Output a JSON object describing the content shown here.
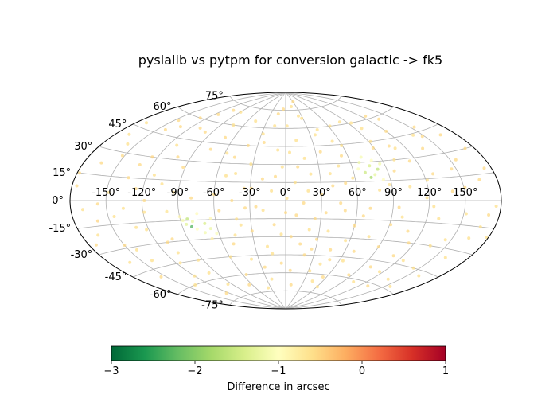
{
  "chart_data": {
    "type": "scatter",
    "projection": "aitoff",
    "title": "pyslalib vs pytpm for conversion galactic -> fk5",
    "grid": true,
    "longitude_ticks": [
      "-150°",
      "-120°",
      "-90°",
      "-60°",
      "-30°",
      "0°",
      "30°",
      "60°",
      "90°",
      "120°",
      "150°"
    ],
    "longitude_tick_values": [
      -150,
      -120,
      -90,
      -60,
      -30,
      0,
      30,
      60,
      90,
      120,
      150
    ],
    "latitude_ticks": [
      "-75°",
      "-60°",
      "-45°",
      "-30°",
      "-15°",
      "0°",
      "15°",
      "30°",
      "45°",
      "60°",
      "75°"
    ],
    "latitude_tick_values": [
      -75,
      -60,
      -45,
      -30,
      -15,
      0,
      15,
      30,
      45,
      60,
      75
    ],
    "colorbar": {
      "label": "Difference in arcsec",
      "range": [
        -3,
        1
      ],
      "ticks": [
        -3,
        -2,
        -1,
        0,
        1
      ],
      "tick_labels": [
        "−3",
        "−2",
        "−1",
        "0",
        "1"
      ],
      "colormap": "RdYlGn_r",
      "color_stops": [
        "#006837",
        "#1a9850",
        "#66bd63",
        "#a6d96a",
        "#d9ef8b",
        "#ffffbf",
        "#fee08b",
        "#fdae61",
        "#f46d43",
        "#d73027",
        "#a50026"
      ]
    },
    "series": [
      {
        "points": [
          [
            -176,
            8,
            -0.55
          ],
          [
            -170,
            -5,
            -0.6
          ],
          [
            -165,
            22,
            -0.55
          ],
          [
            -160,
            -12,
            -0.5
          ],
          [
            -158,
            35,
            -0.6
          ],
          [
            -150,
            -28,
            -0.55
          ],
          [
            -148,
            5,
            -0.6
          ],
          [
            -142,
            48,
            -0.55
          ],
          [
            -140,
            -40,
            -0.6
          ],
          [
            -135,
            15,
            -0.55
          ],
          [
            -130,
            -18,
            -0.6
          ],
          [
            -128,
            60,
            -0.55
          ],
          [
            -125,
            30,
            -0.5
          ],
          [
            -120,
            -55,
            -0.6
          ],
          [
            -118,
            0,
            -0.55
          ],
          [
            -112,
            40,
            -0.6
          ],
          [
            -110,
            -30,
            -0.55
          ],
          [
            -105,
            12,
            -0.6
          ],
          [
            -100,
            -8,
            -0.65
          ],
          [
            -98,
            52,
            -0.55
          ],
          [
            -95,
            -45,
            -0.6
          ],
          [
            -92,
            25,
            -0.55
          ],
          [
            -90,
            -12,
            -0.9
          ],
          [
            -88,
            -15,
            -1.1
          ],
          [
            -86,
            -18,
            -1.3
          ],
          [
            -84,
            -14,
            -1.6
          ],
          [
            -82,
            -20,
            -2.3
          ],
          [
            -80,
            -16,
            -1.2
          ],
          [
            -78,
            -22,
            -1.0
          ],
          [
            -75,
            -10,
            -0.95
          ],
          [
            -72,
            -25,
            -1.15
          ],
          [
            -70,
            -18,
            -1.4
          ],
          [
            -68,
            -30,
            -0.8
          ],
          [
            -66,
            -22,
            -1.2
          ],
          [
            -64,
            -14,
            -0.9
          ],
          [
            -62,
            -26,
            -1.05
          ],
          [
            -60,
            5,
            -0.55
          ],
          [
            -58,
            38,
            -0.6
          ],
          [
            -55,
            -60,
            -0.55
          ],
          [
            -52,
            20,
            -0.6
          ],
          [
            -50,
            -35,
            -0.55
          ],
          [
            -48,
            65,
            -0.6
          ],
          [
            -45,
            0,
            -0.55
          ],
          [
            -42,
            -15,
            -0.6
          ],
          [
            -40,
            45,
            -0.55
          ],
          [
            -38,
            -48,
            -0.6
          ],
          [
            -35,
            10,
            -0.55
          ],
          [
            -32,
            30,
            -0.6
          ],
          [
            -30,
            -25,
            -0.55
          ],
          [
            -28,
            55,
            -0.6
          ],
          [
            -25,
            -5,
            -0.55
          ],
          [
            -22,
            -65,
            -0.6
          ],
          [
            -20,
            18,
            -0.55
          ],
          [
            -18,
            -38,
            -0.6
          ],
          [
            -15,
            72,
            -0.55
          ],
          [
            -12,
            8,
            -0.6
          ],
          [
            -10,
            -20,
            -0.55
          ],
          [
            -8,
            42,
            -0.6
          ],
          [
            -5,
            -52,
            -0.55
          ],
          [
            -3,
            28,
            -0.6
          ],
          [
            0,
            -10,
            -0.55
          ],
          [
            2,
            62,
            -0.6
          ],
          [
            5,
            -30,
            -0.55
          ],
          [
            8,
            15,
            -0.6
          ],
          [
            10,
            -70,
            -0.55
          ],
          [
            12,
            50,
            -0.6
          ],
          [
            15,
            -2,
            -0.55
          ],
          [
            18,
            35,
            -0.6
          ],
          [
            20,
            -45,
            -0.55
          ],
          [
            22,
            22,
            -0.6
          ],
          [
            25,
            -15,
            -0.55
          ],
          [
            28,
            68,
            -0.6
          ],
          [
            30,
            5,
            -0.55
          ],
          [
            32,
            -58,
            -0.6
          ],
          [
            35,
            40,
            -0.55
          ],
          [
            38,
            -25,
            -0.6
          ],
          [
            40,
            12,
            -0.55
          ],
          [
            42,
            58,
            -0.6
          ],
          [
            45,
            -40,
            -0.55
          ],
          [
            48,
            28,
            -0.6
          ],
          [
            50,
            -8,
            -0.55
          ],
          [
            52,
            48,
            -0.6
          ],
          [
            55,
            -62,
            -0.55
          ],
          [
            58,
            18,
            -0.6
          ],
          [
            60,
            -20,
            -0.55
          ],
          [
            62,
            60,
            -0.6
          ],
          [
            65,
            25,
            -1.05
          ],
          [
            68,
            30,
            -1.2
          ],
          [
            70,
            22,
            -1.5
          ],
          [
            72,
            34,
            -1.1
          ],
          [
            74,
            18,
            -1.8
          ],
          [
            76,
            27,
            -1.4
          ],
          [
            78,
            20,
            -1.25
          ],
          [
            80,
            31,
            -1.0
          ],
          [
            82,
            24,
            -1.6
          ],
          [
            84,
            16,
            -0.95
          ],
          [
            86,
            28,
            -1.15
          ],
          [
            88,
            12,
            -0.6
          ],
          [
            90,
            -35,
            -0.55
          ],
          [
            92,
            45,
            -0.6
          ],
          [
            95,
            -5,
            -0.55
          ],
          [
            98,
            55,
            -0.6
          ],
          [
            100,
            -50,
            -0.55
          ],
          [
            105,
            10,
            -0.6
          ],
          [
            108,
            -22,
            -0.55
          ],
          [
            110,
            38,
            -0.6
          ],
          [
            115,
            -30,
            -0.55
          ],
          [
            118,
            2,
            -0.6
          ],
          [
            120,
            50,
            -0.55
          ],
          [
            125,
            -42,
            -0.6
          ],
          [
            128,
            18,
            -0.55
          ],
          [
            130,
            -12,
            -0.6
          ],
          [
            135,
            35,
            -0.55
          ],
          [
            138,
            -55,
            -0.6
          ],
          [
            140,
            6,
            -0.55
          ],
          [
            145,
            -25,
            -0.6
          ],
          [
            148,
            42,
            -0.55
          ],
          [
            152,
            -8,
            -0.6
          ],
          [
            155,
            25,
            -0.55
          ],
          [
            160,
            -35,
            -0.6
          ],
          [
            165,
            12,
            -0.55
          ],
          [
            168,
            -15,
            -0.6
          ],
          [
            172,
            30,
            -0.55
          ],
          [
            176,
            -3,
            -0.6
          ],
          [
            -174,
            -25,
            -0.55
          ],
          [
            -168,
            40,
            -0.6
          ],
          [
            -155,
            -50,
            -0.55
          ],
          [
            -145,
            -10,
            -0.6
          ],
          [
            -132,
            52,
            -0.55
          ],
          [
            -122,
            -20,
            -0.6
          ],
          [
            -115,
            65,
            -0.55
          ],
          [
            -108,
            -38,
            -0.6
          ],
          [
            -102,
            32,
            -0.55
          ],
          [
            -96,
            -65,
            -0.6
          ],
          [
            -76,
            40,
            -0.55
          ],
          [
            -74,
            60,
            -0.6
          ],
          [
            -56,
            -8,
            -0.55
          ],
          [
            -36,
            -72,
            -0.6
          ],
          [
            -24,
            48,
            -0.55
          ],
          [
            -14,
            -44,
            -0.6
          ],
          [
            -6,
            76,
            -0.55
          ],
          [
            4,
            40,
            -0.6
          ],
          [
            14,
            -36,
            -0.55
          ],
          [
            24,
            70,
            -0.6
          ],
          [
            34,
            -10,
            -0.55
          ],
          [
            44,
            -66,
            -0.6
          ],
          [
            54,
            36,
            -0.55
          ],
          [
            64,
            -48,
            -0.6
          ],
          [
            96,
            22,
            -0.55
          ],
          [
            104,
            -62,
            -0.6
          ],
          [
            114,
            28,
            -0.55
          ],
          [
            124,
            -4,
            -0.6
          ],
          [
            134,
            58,
            -0.55
          ],
          [
            144,
            -45,
            -0.6
          ],
          [
            154,
            48,
            -0.55
          ],
          [
            164,
            -22,
            -0.6
          ],
          [
            174,
            18,
            -0.55
          ],
          [
            -162,
            -38,
            -0.6
          ],
          [
            -152,
            28,
            -0.55
          ],
          [
            -138,
            -60,
            -0.6
          ],
          [
            -126,
            8,
            -0.55
          ],
          [
            -116,
            -45,
            -0.6
          ],
          [
            -106,
            70,
            -0.55
          ],
          [
            -94,
            6,
            -0.6
          ],
          [
            -70,
            50,
            -0.55
          ],
          [
            -46,
            -28,
            -0.6
          ],
          [
            -26,
            -55,
            -0.55
          ],
          [
            -16,
            62,
            -0.6
          ],
          [
            6,
            -58,
            -0.55
          ],
          [
            16,
            78,
            -0.6
          ],
          [
            26,
            -40,
            -0.55
          ],
          [
            36,
            54,
            -0.6
          ],
          [
            46,
            -2,
            -0.55
          ],
          [
            56,
            -32,
            -0.6
          ],
          [
            66,
            -12,
            -0.55
          ],
          [
            76,
            -28,
            -0.6
          ],
          [
            86,
            -58,
            -0.55
          ],
          [
            94,
            60,
            -0.6
          ],
          [
            106,
            40,
            -0.55
          ],
          [
            116,
            -52,
            -0.6
          ],
          [
            126,
            62,
            -0.55
          ],
          [
            136,
            -30,
            -0.6
          ],
          [
            146,
            20,
            -0.55
          ],
          [
            156,
            -58,
            -0.6
          ],
          [
            166,
            40,
            -0.55
          ],
          [
            178,
            -20,
            -0.6
          ],
          [
            -178,
            15,
            -0.55
          ],
          [
            -166,
            -20,
            -0.6
          ],
          [
            -146,
            55,
            -0.55
          ],
          [
            -136,
            -5,
            -0.6
          ],
          [
            -124,
            -70,
            -0.55
          ],
          [
            -114,
            18,
            -0.6
          ],
          [
            -104,
            -28,
            -0.55
          ],
          [
            -89,
            70,
            -0.6
          ],
          [
            -65,
            -68,
            -0.55
          ],
          [
            -44,
            22,
            -0.6
          ],
          [
            -34,
            -6,
            -0.55
          ],
          [
            -4,
            -28,
            -0.6
          ],
          [
            11,
            28,
            -0.55
          ],
          [
            21,
            -24,
            -0.6
          ],
          [
            31,
            82,
            -0.55
          ],
          [
            41,
            -52,
            -0.6
          ],
          [
            51,
            14,
            -0.55
          ],
          [
            61,
            -70,
            -0.6
          ],
          [
            71,
            -6,
            -0.55
          ],
          [
            81,
            62,
            -0.6
          ],
          [
            91,
            -18,
            -0.55
          ],
          [
            101,
            30,
            -0.6
          ],
          [
            111,
            -40,
            -0.55
          ],
          [
            121,
            14,
            -0.6
          ],
          [
            131,
            -62,
            -0.55
          ],
          [
            141,
            44,
            -0.6
          ],
          [
            151,
            8,
            -0.55
          ],
          [
            161,
            -48,
            -0.6
          ],
          [
            171,
            -8,
            -0.55
          ],
          [
            -171,
            48,
            -0.6
          ],
          [
            -157,
            -2,
            -0.55
          ],
          [
            -143,
            -32,
            -0.6
          ],
          [
            -131,
            24,
            -0.55
          ],
          [
            -119,
            -8,
            -0.6
          ],
          [
            -109,
            54,
            -0.55
          ],
          [
            -99,
            -55,
            -0.6
          ],
          [
            -79,
            2,
            -0.55
          ],
          [
            -59,
            -45,
            -0.6
          ],
          [
            -49,
            35,
            -0.55
          ],
          [
            -39,
            -20,
            -0.6
          ],
          [
            -29,
            10,
            -0.55
          ],
          [
            -19,
            -8,
            -0.6
          ],
          [
            -9,
            20,
            -0.55
          ],
          [
            1,
            2,
            -0.6
          ],
          [
            9,
            -12,
            -0.55
          ],
          [
            19,
            8,
            -0.6
          ],
          [
            29,
            -32,
            -0.55
          ],
          [
            39,
            22,
            -0.6
          ],
          [
            49,
            -48,
            -0.55
          ],
          [
            59,
            44,
            -0.6
          ],
          [
            69,
            -40,
            -0.55
          ],
          [
            79,
            8,
            -0.6
          ],
          [
            89,
            40,
            -0.55
          ],
          [
            99,
            -12,
            -0.6
          ]
        ]
      }
    ]
  }
}
